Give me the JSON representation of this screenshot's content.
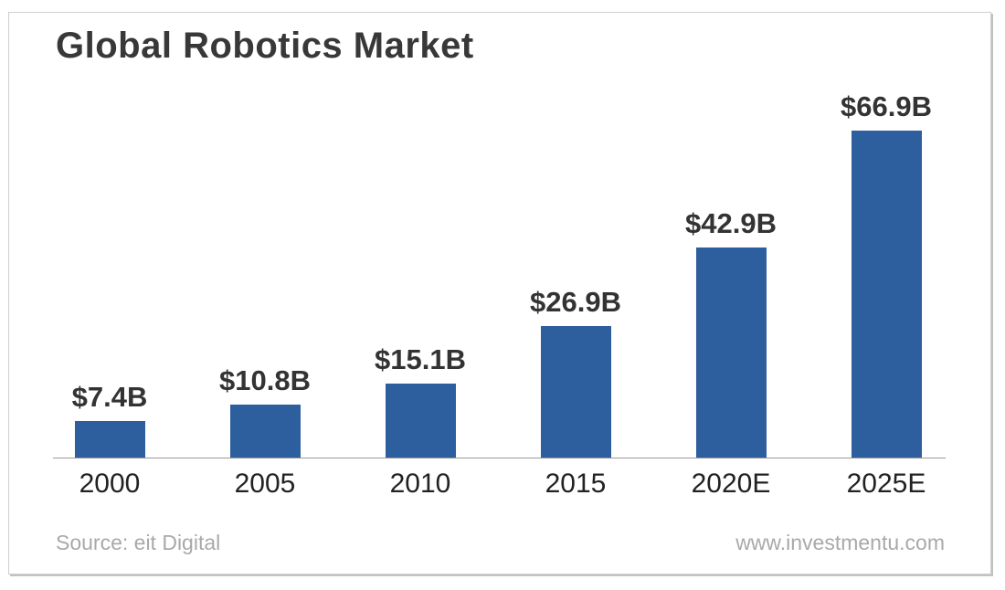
{
  "card": {
    "footer": {
      "source": "Source: eit Digital",
      "website": "www.investmentu.com"
    }
  },
  "chart_data": {
    "type": "bar",
    "title": "Global Robotics Market",
    "categories": [
      "2000",
      "2005",
      "2010",
      "2015",
      "2020E",
      "2025E"
    ],
    "values": [
      7.4,
      10.8,
      15.1,
      26.9,
      42.9,
      66.9
    ],
    "value_labels": [
      "$7.4B",
      "$10.8B",
      "$15.1B",
      "$26.9B",
      "$42.9B",
      "$66.9B"
    ],
    "unit": "$B",
    "xlabel": "",
    "ylabel": "",
    "ylim": [
      0,
      70
    ],
    "grid": false,
    "legend": false,
    "bar_color": "#2d5f9e",
    "value_label_color": "#333333",
    "tick_label_color": "#222222",
    "axis_line_color": "#9a9a9a",
    "footer_text_color": "#a9a9a9"
  }
}
